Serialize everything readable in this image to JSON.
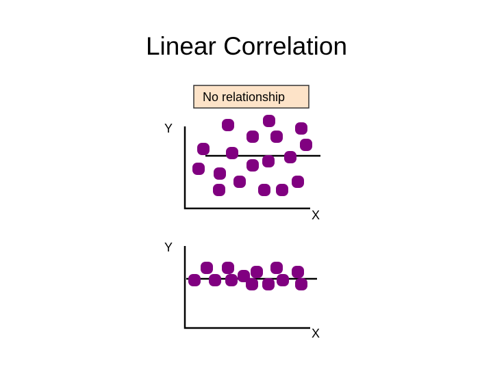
{
  "header": {
    "title": "Linear Correlation"
  },
  "panels": [
    {
      "label": "No relationship",
      "y_axis": "Y",
      "x_axis": "X"
    },
    {
      "y_axis": "Y",
      "x_axis": "X"
    }
  ]
}
